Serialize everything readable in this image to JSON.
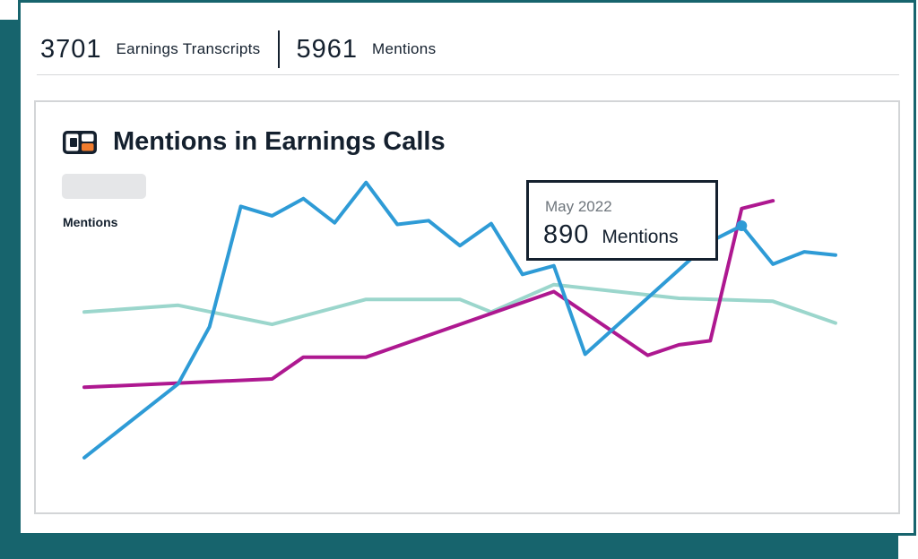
{
  "stats": {
    "transcripts_value": "3701",
    "transcripts_label": "Earnings Transcripts",
    "mentions_value": "5961",
    "mentions_label": "Mentions"
  },
  "chart": {
    "title": "Mentions in Earnings Calls",
    "ylabel": "Mentions"
  },
  "tooltip": {
    "date": "May 2022",
    "value": "890",
    "unit": "Mentions"
  },
  "colors": {
    "brand_dark": "#17646d",
    "text_dark": "#14202e",
    "series_blue": "#2e9bd6",
    "series_teal": "#9bd6cc",
    "series_magenta": "#ae1890"
  },
  "icons": {
    "logo": "brand-logo-icon"
  },
  "chart_data": {
    "type": "line",
    "title": "Mentions in Earnings Calls",
    "xlabel": "",
    "ylabel": "Mentions",
    "ylim": [
      0,
      1000
    ],
    "grid": false,
    "highlight": {
      "series": 0,
      "index": 21,
      "label": "May 2022",
      "value": 890
    },
    "series": [
      {
        "color": "#2e9bd6",
        "points": [
          [
            0,
            27
          ],
          [
            3,
            302
          ],
          [
            4,
            514
          ],
          [
            5,
            962
          ],
          [
            6,
            927
          ],
          [
            7,
            991
          ],
          [
            8,
            901
          ],
          [
            9,
            1051
          ],
          [
            10,
            895
          ],
          [
            11,
            909
          ],
          [
            12,
            816
          ],
          [
            13,
            898
          ],
          [
            14,
            709
          ],
          [
            15,
            741
          ],
          [
            16,
            412
          ],
          [
            20,
            831
          ],
          [
            21,
            890
          ],
          [
            22,
            747
          ],
          [
            23,
            793
          ],
          [
            24,
            781
          ]
        ]
      },
      {
        "color": "#9bd6cc",
        "points": [
          [
            0,
            569
          ],
          [
            3,
            594
          ],
          [
            6,
            523
          ],
          [
            9,
            616
          ],
          [
            12,
            616
          ],
          [
            13,
            569
          ],
          [
            15,
            671
          ],
          [
            19,
            620
          ],
          [
            22,
            609
          ],
          [
            24,
            528
          ]
        ]
      },
      {
        "color": "#ae1890",
        "points": [
          [
            0,
            289
          ],
          [
            6,
            320
          ],
          [
            7,
            401
          ],
          [
            9,
            401
          ],
          [
            15,
            645
          ],
          [
            18,
            408
          ],
          [
            19,
            447
          ],
          [
            20,
            462
          ],
          [
            21,
            954
          ],
          [
            22,
            983
          ]
        ]
      }
    ]
  }
}
